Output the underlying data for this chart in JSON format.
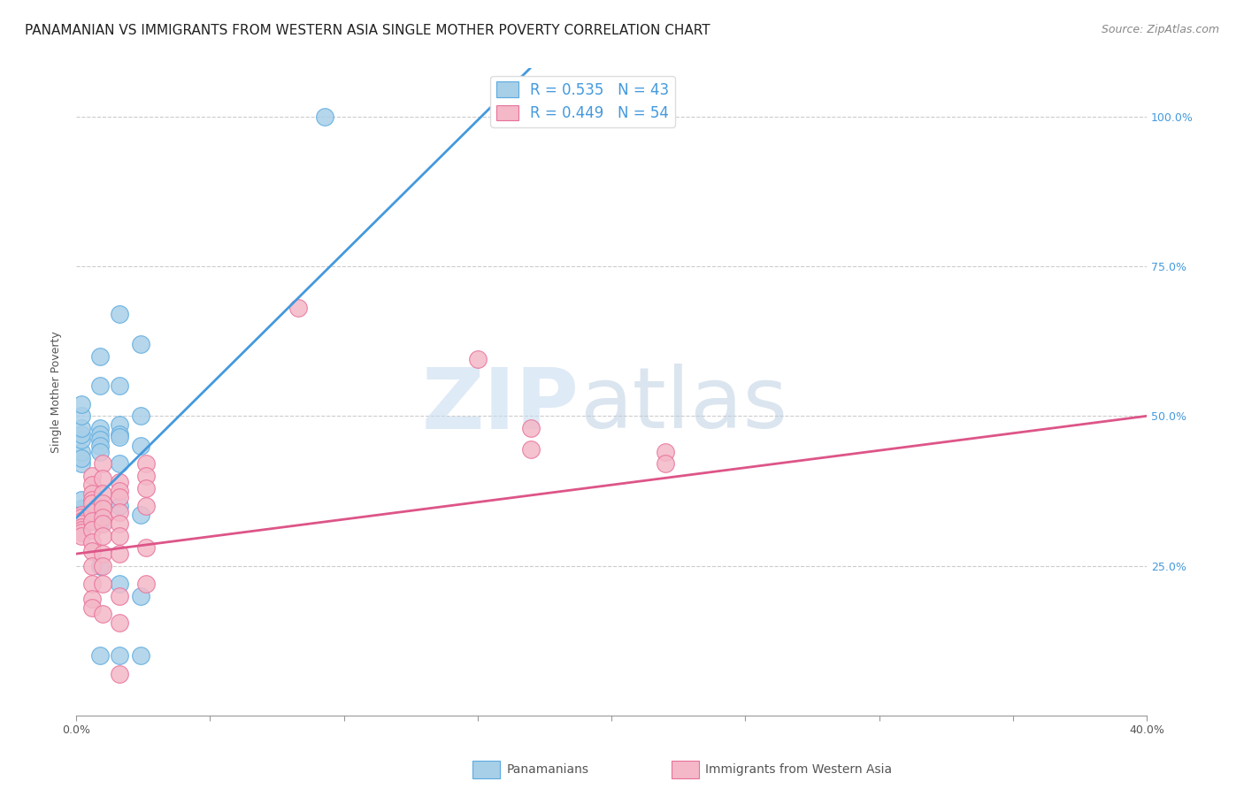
{
  "title": "PANAMANIAN VS IMMIGRANTS FROM WESTERN ASIA SINGLE MOTHER POVERTY CORRELATION CHART",
  "source": "Source: ZipAtlas.com",
  "ylabel": "Single Mother Poverty",
  "legend_blue_label": "Panamanians",
  "legend_pink_label": "Immigrants from Western Asia",
  "watermark_zip": "ZIP",
  "watermark_atlas": "atlas",
  "blue_R": 0.535,
  "blue_N": 43,
  "pink_R": 0.449,
  "pink_N": 54,
  "blue_color": "#a8cfe8",
  "pink_color": "#f4b8c8",
  "blue_edge_color": "#5aaae0",
  "pink_edge_color": "#e87098",
  "blue_line_color": "#4499dd",
  "pink_line_color": "#dd5588",
  "blue_scatter": [
    [
      0.002,
      0.335
    ],
    [
      0.002,
      0.33
    ],
    [
      0.002,
      0.34
    ],
    [
      0.002,
      0.325
    ],
    [
      0.002,
      0.32
    ],
    [
      0.002,
      0.315
    ],
    [
      0.002,
      0.345
    ],
    [
      0.002,
      0.36
    ],
    [
      0.002,
      0.42
    ],
    [
      0.002,
      0.44
    ],
    [
      0.002,
      0.43
    ],
    [
      0.002,
      0.46
    ],
    [
      0.002,
      0.47
    ],
    [
      0.002,
      0.48
    ],
    [
      0.002,
      0.5
    ],
    [
      0.002,
      0.52
    ],
    [
      0.009,
      0.6
    ],
    [
      0.009,
      0.55
    ],
    [
      0.009,
      0.48
    ],
    [
      0.009,
      0.47
    ],
    [
      0.009,
      0.46
    ],
    [
      0.009,
      0.45
    ],
    [
      0.009,
      0.44
    ],
    [
      0.009,
      0.33
    ],
    [
      0.009,
      0.32
    ],
    [
      0.009,
      0.25
    ],
    [
      0.009,
      0.1
    ],
    [
      0.016,
      0.67
    ],
    [
      0.016,
      0.55
    ],
    [
      0.016,
      0.485
    ],
    [
      0.016,
      0.47
    ],
    [
      0.016,
      0.465
    ],
    [
      0.016,
      0.42
    ],
    [
      0.016,
      0.35
    ],
    [
      0.016,
      0.22
    ],
    [
      0.016,
      0.1
    ],
    [
      0.024,
      0.62
    ],
    [
      0.024,
      0.5
    ],
    [
      0.024,
      0.45
    ],
    [
      0.024,
      0.335
    ],
    [
      0.024,
      0.2
    ],
    [
      0.024,
      0.1
    ],
    [
      0.093,
      1.0
    ]
  ],
  "pink_scatter": [
    [
      0.002,
      0.335
    ],
    [
      0.002,
      0.33
    ],
    [
      0.002,
      0.325
    ],
    [
      0.002,
      0.32
    ],
    [
      0.002,
      0.315
    ],
    [
      0.002,
      0.31
    ],
    [
      0.002,
      0.305
    ],
    [
      0.002,
      0.3
    ],
    [
      0.006,
      0.4
    ],
    [
      0.006,
      0.385
    ],
    [
      0.006,
      0.37
    ],
    [
      0.006,
      0.36
    ],
    [
      0.006,
      0.355
    ],
    [
      0.006,
      0.34
    ],
    [
      0.006,
      0.325
    ],
    [
      0.006,
      0.31
    ],
    [
      0.006,
      0.29
    ],
    [
      0.006,
      0.275
    ],
    [
      0.006,
      0.25
    ],
    [
      0.006,
      0.22
    ],
    [
      0.006,
      0.195
    ],
    [
      0.006,
      0.18
    ],
    [
      0.01,
      0.42
    ],
    [
      0.01,
      0.395
    ],
    [
      0.01,
      0.37
    ],
    [
      0.01,
      0.355
    ],
    [
      0.01,
      0.345
    ],
    [
      0.01,
      0.33
    ],
    [
      0.01,
      0.32
    ],
    [
      0.01,
      0.3
    ],
    [
      0.01,
      0.27
    ],
    [
      0.01,
      0.25
    ],
    [
      0.01,
      0.22
    ],
    [
      0.01,
      0.17
    ],
    [
      0.016,
      0.39
    ],
    [
      0.016,
      0.375
    ],
    [
      0.016,
      0.365
    ],
    [
      0.016,
      0.34
    ],
    [
      0.016,
      0.32
    ],
    [
      0.016,
      0.3
    ],
    [
      0.016,
      0.27
    ],
    [
      0.016,
      0.2
    ],
    [
      0.016,
      0.155
    ],
    [
      0.016,
      0.07
    ],
    [
      0.026,
      0.42
    ],
    [
      0.026,
      0.4
    ],
    [
      0.026,
      0.38
    ],
    [
      0.026,
      0.35
    ],
    [
      0.026,
      0.28
    ],
    [
      0.026,
      0.22
    ],
    [
      0.083,
      0.68
    ],
    [
      0.15,
      0.595
    ],
    [
      0.17,
      0.48
    ],
    [
      0.17,
      0.445
    ],
    [
      0.22,
      0.44
    ],
    [
      0.22,
      0.42
    ]
  ],
  "xlim": [
    0,
    0.4
  ],
  "ylim": [
    0,
    1.08
  ],
  "blue_line_x": [
    0.0,
    0.4
  ],
  "blue_line_y": [
    0.33,
    2.1
  ],
  "pink_line_x": [
    0.0,
    0.4
  ],
  "pink_line_y": [
    0.27,
    0.5
  ],
  "ytick_vals": [
    0.25,
    0.5,
    0.75,
    1.0
  ],
  "ytick_labels": [
    "25.0%",
    "50.0%",
    "75.0%",
    "100.0%"
  ],
  "xtick_vals": [
    0.0,
    0.05,
    0.1,
    0.15,
    0.2,
    0.25,
    0.3,
    0.35,
    0.4
  ],
  "title_fontsize": 11,
  "source_fontsize": 9,
  "axis_label_fontsize": 9,
  "tick_fontsize": 9,
  "legend_fontsize": 12,
  "background_color": "#ffffff",
  "grid_color": "#cccccc",
  "axis_color": "#999999",
  "label_color": "#555555",
  "right_tick_color": "#4499dd"
}
